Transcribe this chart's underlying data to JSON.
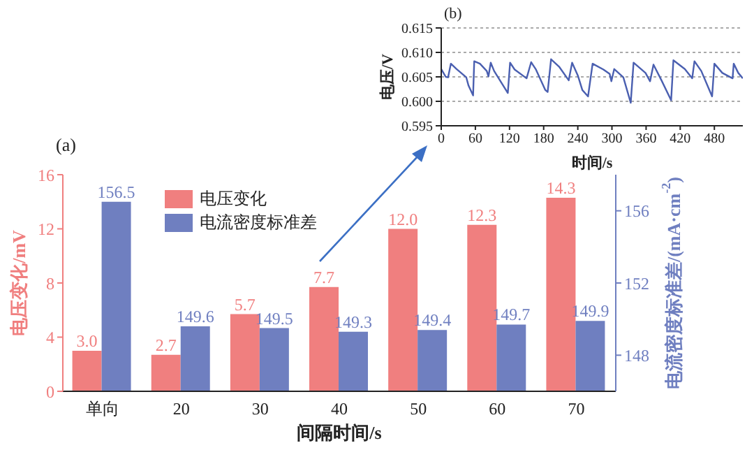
{
  "chart_data": [
    {
      "type": "bar",
      "title": "(a)",
      "categories": [
        "单向",
        "20",
        "30",
        "40",
        "50",
        "60",
        "70"
      ],
      "series": [
        {
          "name": "电压变化",
          "color": "#f07f7f",
          "axis": "y",
          "values": [
            3.0,
            2.7,
            5.7,
            7.7,
            12.0,
            12.3,
            14.3
          ],
          "value_labels": [
            "3.0",
            "2.7",
            "5.7",
            "7.7",
            "12.0",
            "12.3",
            "14.3"
          ]
        },
        {
          "name": "电流密度标准差",
          "color": "#6f7fc0",
          "axis": "y2",
          "values": [
            156.5,
            149.6,
            149.5,
            149.3,
            149.4,
            149.7,
            149.9
          ],
          "value_labels": [
            "156.5",
            "149.6",
            "149.5",
            "149.3",
            "149.4",
            "149.7",
            "149.9"
          ]
        }
      ],
      "xlabel": "间隔时间/s",
      "ylabel": "电压变化/mV",
      "y2label": "电流密度标准差/(mA·cm$^{-2}$)",
      "ylim": [
        0,
        16
      ],
      "yticks": [
        0,
        4,
        8,
        12,
        16
      ],
      "y2lim": [
        146,
        158
      ],
      "y2ticks": [
        148,
        152,
        156
      ],
      "legend": "top left",
      "grid": false
    },
    {
      "type": "line",
      "title": "(b)",
      "x": [
        0,
        8,
        12,
        17,
        27,
        44,
        48,
        56,
        58,
        68,
        80,
        83,
        87,
        93,
        117,
        121,
        129,
        150,
        158,
        166,
        183,
        187,
        193,
        207,
        224,
        230,
        240,
        248,
        258,
        266,
        285,
        296,
        299,
        304,
        320,
        333,
        338,
        359,
        367,
        373,
        387,
        404,
        408,
        428,
        441,
        445,
        457,
        476,
        480,
        494,
        512,
        514,
        522,
        530
      ],
      "series": [
        {
          "color": "#4a5fb0",
          "values": [
            0.6066,
            0.605,
            0.6049,
            0.6077,
            0.6066,
            0.6049,
            0.6032,
            0.6012,
            0.6082,
            0.6077,
            0.6062,
            0.6051,
            0.6079,
            0.6062,
            0.6017,
            0.6079,
            0.6065,
            0.6047,
            0.608,
            0.6066,
            0.6023,
            0.6019,
            0.6086,
            0.6071,
            0.6043,
            0.6079,
            0.6053,
            0.6023,
            0.601,
            0.6077,
            0.6065,
            0.6056,
            0.6041,
            0.6066,
            0.6049,
            0.5997,
            0.6079,
            0.6058,
            0.6041,
            0.6075,
            0.6043,
            0.6002,
            0.6084,
            0.6066,
            0.6047,
            0.6082,
            0.6062,
            0.601,
            0.6077,
            0.6058,
            0.6047,
            0.6077,
            0.6058,
            0.6047
          ]
        }
      ],
      "xlabel": "时间/s",
      "ylabel": "电压/V",
      "xlim": [
        0,
        530
      ],
      "xticks": [
        0,
        60,
        120,
        180,
        240,
        300,
        360,
        420,
        480
      ],
      "ylim": [
        0.595,
        0.615
      ],
      "yticks": [
        0.595,
        {
          "value": 0.6,
          "label": "0.600"
        },
        0.605,
        {
          "value": 0.61,
          "label": "0.610"
        },
        0.615
      ],
      "grid": "y",
      "marker": "none"
    }
  ]
}
